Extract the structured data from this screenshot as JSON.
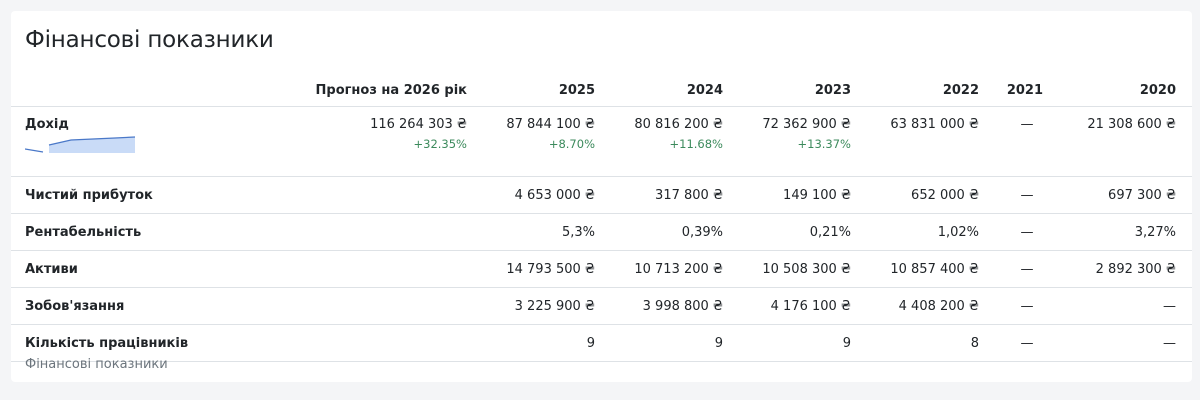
{
  "title": "Фінансові показники",
  "columns": [
    "",
    "Прогноз на 2026 рік",
    "2025",
    "2024",
    "2023",
    "2022",
    "2021",
    "2020"
  ],
  "rows": [
    {
      "label": "Дохід",
      "values": [
        "116 264 303 ₴",
        "87 844 100 ₴",
        "80 816 200 ₴",
        "72 362 900 ₴",
        "63 831 000 ₴",
        "—",
        "21 308 600 ₴"
      ],
      "changes": [
        "+32.35%",
        "+8.70%",
        "+11.68%",
        "+13.37%",
        "",
        "",
        ""
      ]
    },
    {
      "label": "Чистий прибуток",
      "values": [
        "",
        "4 653 000 ₴",
        "317 800 ₴",
        "149 100 ₴",
        "652 000 ₴",
        "—",
        "697 300 ₴"
      ]
    },
    {
      "label": "Рентабельність",
      "values": [
        "",
        "5,3%",
        "0,39%",
        "0,21%",
        "1,02%",
        "—",
        "3,27%"
      ]
    },
    {
      "label": "Активи",
      "values": [
        "",
        "14 793 500 ₴",
        "10 713 200 ₴",
        "10 508 300 ₴",
        "10 857 400 ₴",
        "—",
        "2 892 300 ₴"
      ]
    },
    {
      "label": "Зобов'язання",
      "values": [
        "",
        "3 225 900 ₴",
        "3 998 800 ₴",
        "4 176 100 ₴",
        "4 408 200 ₴",
        "—",
        "—"
      ]
    },
    {
      "label": "Кількість працівників",
      "values": [
        "",
        "9",
        "9",
        "9",
        "8",
        "—",
        "—"
      ]
    }
  ],
  "sparkline": {
    "color": "#4a78c8",
    "fill": "#c9dbf7"
  },
  "caption": "Фінансові показники"
}
